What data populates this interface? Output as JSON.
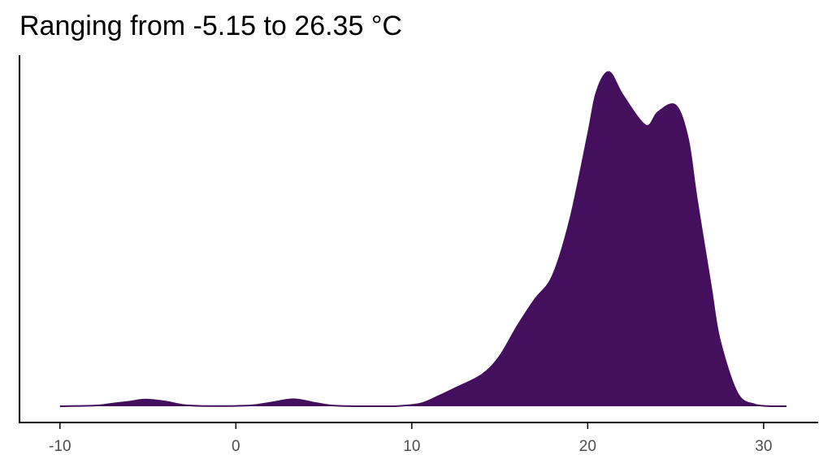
{
  "chart_data": {
    "type": "area",
    "title": "Ranging from -5.15 to 26.35 °C",
    "xlabel": "",
    "ylabel": "",
    "xlim": [
      -12.3,
      33.1
    ],
    "ylim": [
      0,
      0.105
    ],
    "xticks": [
      -10,
      0,
      10,
      20,
      30
    ],
    "xtick_labels": [
      "-10",
      "0",
      "10",
      "20",
      "30"
    ],
    "grid": false,
    "legend": "none",
    "fill_color": "#440f5d",
    "series": [
      {
        "x": [
          -10,
          -8,
          -7,
          -6,
          -5.15,
          -4,
          -3,
          -2,
          0,
          1,
          2,
          3.3,
          4.5,
          5.5,
          7,
          9,
          10.5,
          11.5,
          12.5,
          14,
          15,
          16,
          17,
          18,
          19,
          20,
          20.5,
          21.2,
          22,
          23.3,
          24,
          25,
          25.7,
          26.2,
          27,
          27.5,
          28.5,
          29.5,
          30.5,
          31.3
        ],
        "y": [
          0.0,
          0.0002,
          0.0008,
          0.0014,
          0.002,
          0.0014,
          0.0004,
          0.0001,
          0.0001,
          0.0003,
          0.0011,
          0.0021,
          0.001,
          0.0002,
          0.0,
          0.0,
          0.0008,
          0.003,
          0.0055,
          0.0095,
          0.015,
          0.024,
          0.032,
          0.039,
          0.056,
          0.081,
          0.094,
          0.1,
          0.093,
          0.084,
          0.088,
          0.09,
          0.08,
          0.062,
          0.036,
          0.02,
          0.004,
          0.0005,
          0.0,
          0.0
        ]
      }
    ]
  }
}
